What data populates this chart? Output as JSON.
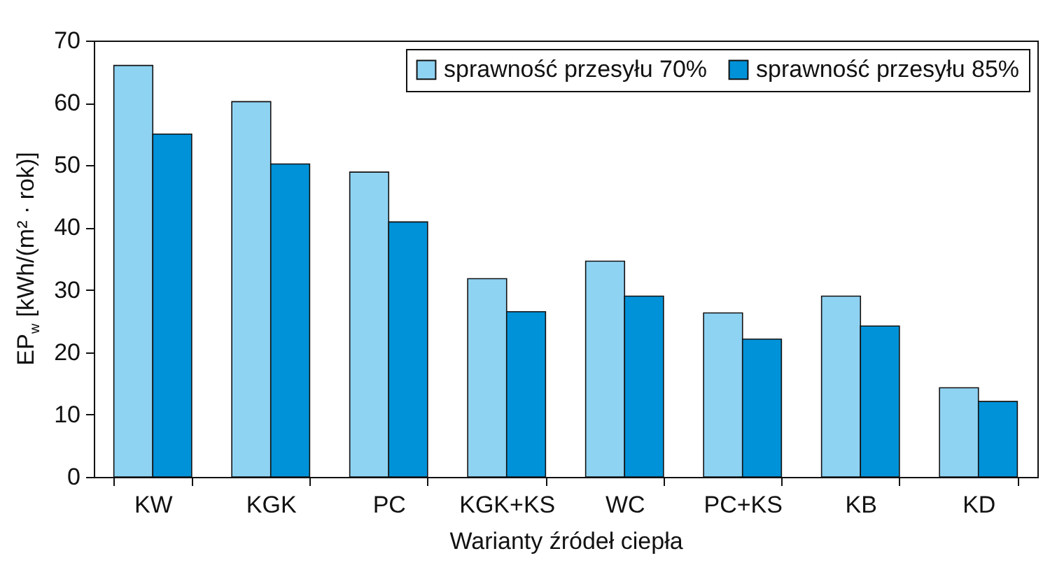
{
  "chart_data": {
    "type": "bar",
    "xlabel": "Warianty źródeł ciepła",
    "ylabel": "EP$_{w}$ [kWh/(m² · rok)]",
    "categories": [
      "KW",
      "KGK",
      "PC",
      "KGK+KS",
      "WC",
      "PC+KS",
      "KB",
      "KD"
    ],
    "series": [
      {
        "name": "sprawność przesyłu 70%",
        "color": "#8fd3f3",
        "values": [
          66,
          60.2,
          48.9,
          31.8,
          34.6,
          26.3,
          29,
          14.3
        ]
      },
      {
        "name": "sprawność przesyłu 85%",
        "color": "#0092d8",
        "values": [
          55,
          50.2,
          40.9,
          26.5,
          29,
          22.1,
          24.2,
          12.1
        ]
      }
    ],
    "ylim": [
      0,
      70
    ],
    "yticks": [
      0,
      10,
      20,
      30,
      40,
      50,
      60,
      70
    ],
    "grid": false,
    "legend": "top right"
  }
}
